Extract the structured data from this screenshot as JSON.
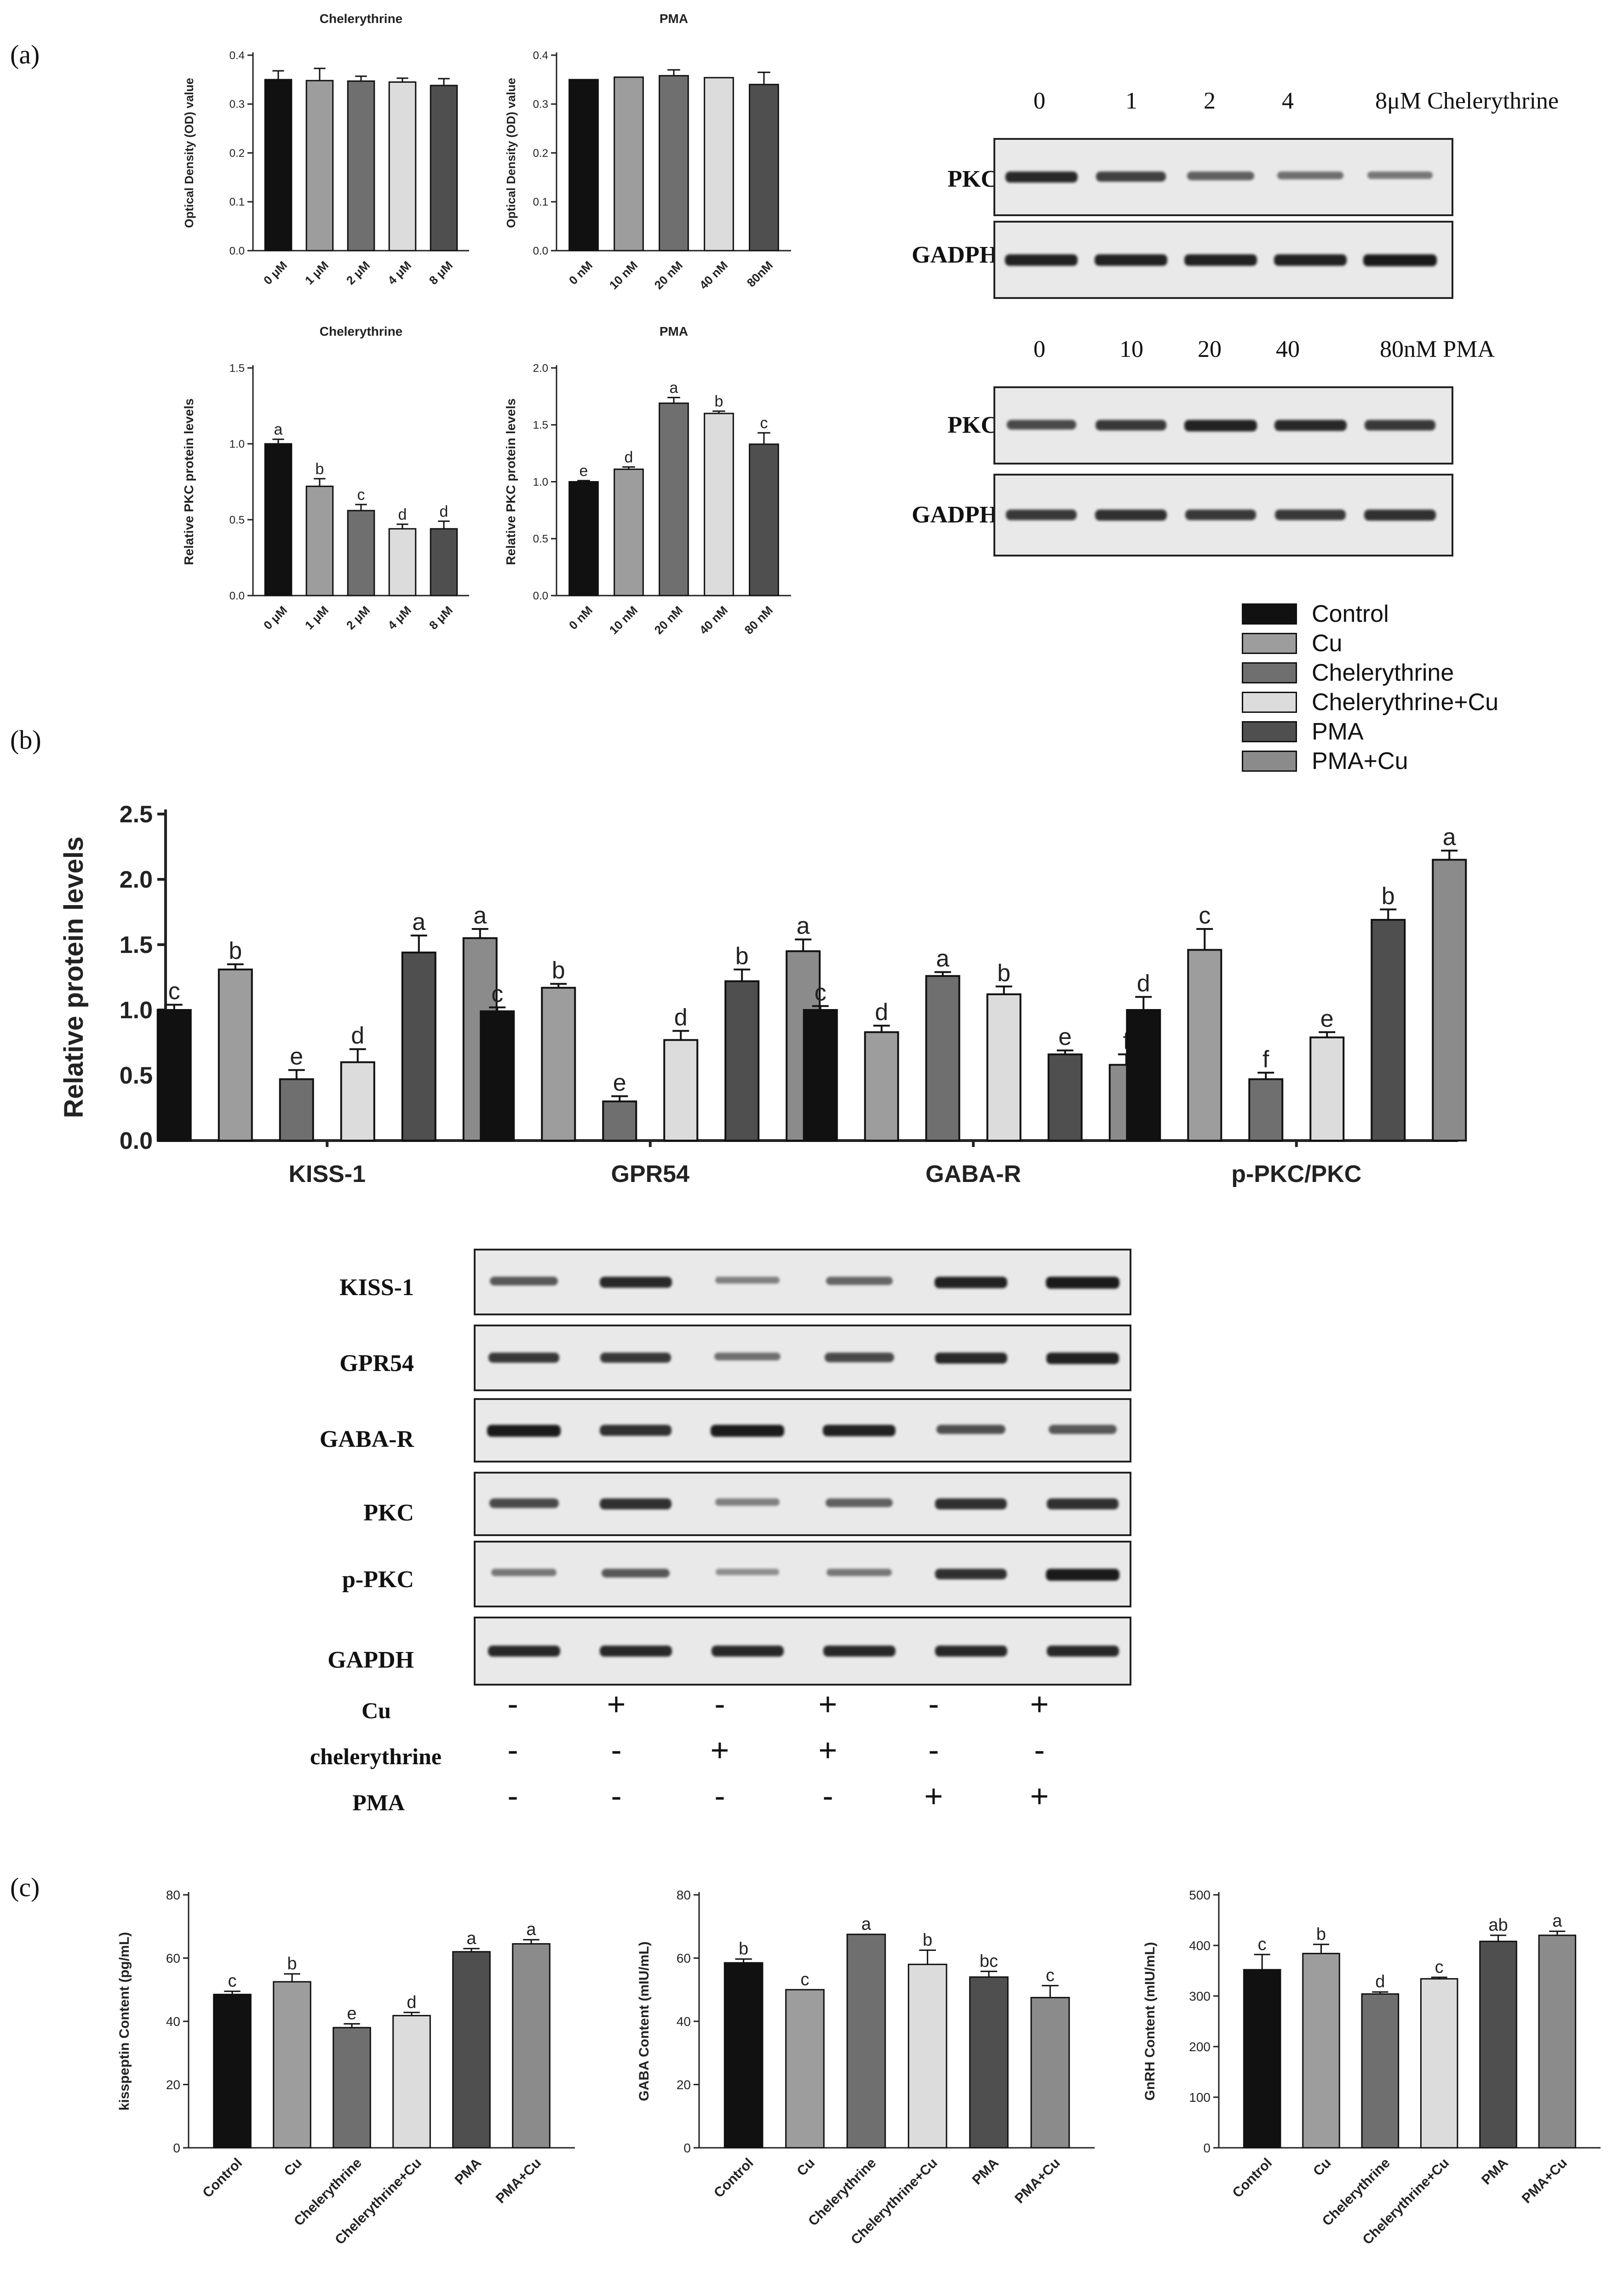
{
  "panels": {
    "a": "(a)",
    "b": "(b)",
    "c": "(c)"
  },
  "groups": [
    "Control",
    "Cu",
    "Chelerythrine",
    "Chelerythrine+Cu",
    "PMA",
    "PMA+Cu"
  ],
  "colors": {
    "Control": "#111111",
    "Cu": "#9d9d9d",
    "Chelerythrine": "#6f6f6f",
    "Chelerythrine+Cu": "#dcdcdc",
    "PMA": "#4f4f4f",
    "PMA+Cu": "#8b8b8b"
  },
  "legend": [
    "Control",
    "Cu",
    "Chelerythrine",
    "Chelerythrine+Cu",
    "PMA",
    "PMA+Cu"
  ],
  "chart_data": [
    {
      "id": "a1",
      "type": "bar",
      "title": "Chelerythrine",
      "ylabel": "Optical Density (OD) value",
      "categories": [
        "0 μM",
        "1 μM",
        "2 μM",
        "4 μM",
        "8 μM"
      ],
      "values": [
        0.35,
        0.348,
        0.347,
        0.345,
        0.338
      ],
      "errors": [
        0.018,
        0.025,
        0.01,
        0.008,
        0.014
      ],
      "letters": [],
      "colors": [
        "#111111",
        "#9d9d9d",
        "#6f6f6f",
        "#dcdcdc",
        "#4f4f4f"
      ],
      "ylim": [
        0,
        0.4
      ],
      "yticks": [
        "0.0",
        "0.1",
        "0.2",
        "0.3",
        "0.4"
      ]
    },
    {
      "id": "a2",
      "type": "bar",
      "title": "PMA",
      "ylabel": "Optical Density (OD) value",
      "categories": [
        "0 nM",
        "10 nM",
        "20 nM",
        "40 nM",
        "80nM"
      ],
      "values": [
        0.35,
        0.355,
        0.358,
        0.354,
        0.34
      ],
      "errors": [
        0,
        0,
        0.012,
        0,
        0.025
      ],
      "letters": [],
      "colors": [
        "#111111",
        "#9d9d9d",
        "#6f6f6f",
        "#dcdcdc",
        "#4f4f4f"
      ],
      "ylim": [
        0,
        0.4
      ],
      "yticks": [
        "0.0",
        "0.1",
        "0.2",
        "0.3",
        "0.4"
      ]
    },
    {
      "id": "a3",
      "type": "bar",
      "title": "Chelerythrine",
      "ylabel": "Relative PKC protein levels",
      "categories": [
        "0 μM",
        "1 μM",
        "2 μM",
        "4 μM",
        "8 μM"
      ],
      "values": [
        1.0,
        0.72,
        0.56,
        0.44,
        0.44
      ],
      "errors": [
        0.03,
        0.05,
        0.04,
        0.03,
        0.05
      ],
      "letters": [
        "a",
        "b",
        "c",
        "d",
        "d"
      ],
      "colors": [
        "#111111",
        "#9d9d9d",
        "#6f6f6f",
        "#dcdcdc",
        "#4f4f4f"
      ],
      "ylim": [
        0,
        1.5
      ],
      "yticks": [
        "0.0",
        "0.5",
        "1.0",
        "1.5"
      ]
    },
    {
      "id": "a4",
      "type": "bar",
      "title": "PMA",
      "ylabel": "Relative PKC protein levels",
      "categories": [
        "0 nM",
        "10 nM",
        "20 nM",
        "40 nM",
        "80 nM"
      ],
      "values": [
        1.0,
        1.11,
        1.69,
        1.6,
        1.33
      ],
      "errors": [
        0.01,
        0.02,
        0.05,
        0.02,
        0.1
      ],
      "letters": [
        "e",
        "d",
        "a",
        "b",
        "c"
      ],
      "colors": [
        "#111111",
        "#9d9d9d",
        "#6f6f6f",
        "#dcdcdc",
        "#4f4f4f"
      ],
      "ylim": [
        0,
        2.0
      ],
      "yticks": [
        "0.0",
        "0.5",
        "1.0",
        "1.5",
        "2.0"
      ]
    },
    {
      "id": "b",
      "type": "bar",
      "ylabel": "Relative protein levels",
      "categories": [
        "KISS-1",
        "GPR54",
        "GABA-R",
        "p-PKC/PKC"
      ],
      "series": [
        {
          "name": "Control",
          "values": [
            1.0,
            0.99,
            1.0,
            1.0
          ],
          "errors": [
            0.04,
            0.03,
            0.03,
            0.1
          ],
          "letters": [
            "c",
            "c",
            "c",
            "d"
          ]
        },
        {
          "name": "Cu",
          "values": [
            1.31,
            1.17,
            0.83,
            1.46
          ],
          "errors": [
            0.04,
            0.03,
            0.05,
            0.16
          ],
          "letters": [
            "b",
            "b",
            "d",
            "c"
          ]
        },
        {
          "name": "Chelerythrine",
          "values": [
            0.47,
            0.3,
            1.26,
            0.47
          ],
          "errors": [
            0.07,
            0.04,
            0.03,
            0.05
          ],
          "letters": [
            "e",
            "e",
            "a",
            "f"
          ]
        },
        {
          "name": "Chelerythrine+Cu",
          "values": [
            0.6,
            0.77,
            1.12,
            0.79
          ],
          "errors": [
            0.1,
            0.07,
            0.06,
            0.04
          ],
          "letters": [
            "d",
            "d",
            "b",
            "e"
          ]
        },
        {
          "name": "PMA",
          "values": [
            1.44,
            1.22,
            0.66,
            1.69
          ],
          "errors": [
            0.13,
            0.09,
            0.03,
            0.08
          ],
          "letters": [
            "a",
            "b",
            "e",
            "b"
          ]
        },
        {
          "name": "PMA+Cu",
          "values": [
            1.55,
            1.45,
            0.58,
            2.15
          ],
          "errors": [
            0.07,
            0.09,
            0.08,
            0.07
          ],
          "letters": [
            "a",
            "a",
            "f",
            "a"
          ]
        }
      ],
      "ylim": [
        0,
        2.5
      ],
      "yticks": [
        "0.0",
        "0.5",
        "1.0",
        "1.5",
        "2.0",
        "2.5"
      ]
    },
    {
      "id": "c1",
      "type": "bar",
      "ylabel": "kisspeptin Content (pg/mL)",
      "categories": [
        "Control",
        "Cu",
        "Chelerythrine",
        "Chelerythrine+Cu",
        "PMA",
        "PMA+Cu"
      ],
      "values": [
        48.5,
        52.5,
        38,
        41.8,
        62,
        64.5
      ],
      "errors": [
        1.0,
        2.5,
        1.2,
        1.0,
        1.0,
        1.3
      ],
      "letters": [
        "c",
        "b",
        "e",
        "d",
        "a",
        "a"
      ],
      "ylim": [
        0,
        80
      ],
      "yticks": [
        "0",
        "20",
        "40",
        "60",
        "80"
      ]
    },
    {
      "id": "c2",
      "type": "bar",
      "ylabel": "GABA Content (mIU/mL)",
      "categories": [
        "Control",
        "Cu",
        "Chelerythrine",
        "Chelerythrine+Cu",
        "PMA",
        "PMA+Cu"
      ],
      "values": [
        58.5,
        50,
        67.5,
        58,
        54,
        47.5
      ],
      "errors": [
        1.2,
        0,
        0,
        4.5,
        1.8,
        3.8
      ],
      "letters": [
        "b",
        "c",
        "a",
        "b",
        "bc",
        "c"
      ],
      "ylim": [
        0,
        80
      ],
      "yticks": [
        "0",
        "20",
        "40",
        "60",
        "80"
      ]
    },
    {
      "id": "c3",
      "type": "bar",
      "ylabel": "GnRH Content (mIU/mL)",
      "categories": [
        "Control",
        "Cu",
        "Chelerythrine",
        "Chelerythrine+Cu",
        "PMA",
        "PMA+Cu"
      ],
      "values": [
        352,
        384,
        304,
        334,
        408,
        420
      ],
      "errors": [
        30,
        18,
        4,
        3,
        12,
        8
      ],
      "letters": [
        "c",
        "b",
        "d",
        "c",
        "ab",
        "a"
      ],
      "ylim": [
        0,
        500
      ],
      "yticks": [
        "0",
        "100",
        "200",
        "300",
        "400",
        "500"
      ]
    }
  ],
  "blots": {
    "chelerythrine_lanes": [
      "0",
      "1",
      "2",
      "4",
      "8μM Chelerythrine"
    ],
    "pma_lanes": [
      "0",
      "10",
      "20",
      "40",
      "80nM PMA"
    ],
    "top_rows": [
      "PKC",
      "GADPH"
    ],
    "b_rows": [
      "KISS-1",
      "GPR54",
      "GABA-R",
      "PKC",
      "p-PKC",
      "GAPDH"
    ],
    "band_intensity": {
      "chel_pkc": [
        0.9,
        0.75,
        0.55,
        0.45,
        0.4
      ],
      "chel_gadph": [
        0.95,
        0.95,
        0.95,
        0.95,
        1.0
      ],
      "pma_pkc": [
        0.7,
        0.8,
        0.95,
        0.9,
        0.8
      ],
      "pma_gadph": [
        0.8,
        0.85,
        0.8,
        0.8,
        0.85
      ],
      "KISS-1": [
        0.6,
        0.9,
        0.35,
        0.5,
        0.95,
        1.0
      ],
      "GPR54": [
        0.8,
        0.8,
        0.45,
        0.7,
        0.9,
        0.95
      ],
      "GABA-R": [
        1.0,
        0.85,
        1.0,
        0.95,
        0.65,
        0.6
      ],
      "PKC": [
        0.7,
        0.85,
        0.35,
        0.55,
        0.85,
        0.85
      ],
      "p-PKC": [
        0.4,
        0.6,
        0.25,
        0.4,
        0.85,
        1.0
      ],
      "GAPDH": [
        0.9,
        0.9,
        0.9,
        0.9,
        0.9,
        0.9
      ]
    },
    "treatments": [
      {
        "label": "Cu",
        "signs": [
          "-",
          "+",
          "-",
          "+",
          "-",
          "+"
        ]
      },
      {
        "label": "chelerythrine",
        "signs": [
          "-",
          "-",
          "+",
          "+",
          "-",
          "-"
        ]
      },
      {
        "label": "PMA",
        "signs": [
          "-",
          "-",
          "-",
          "-",
          "+",
          "+"
        ]
      }
    ]
  }
}
